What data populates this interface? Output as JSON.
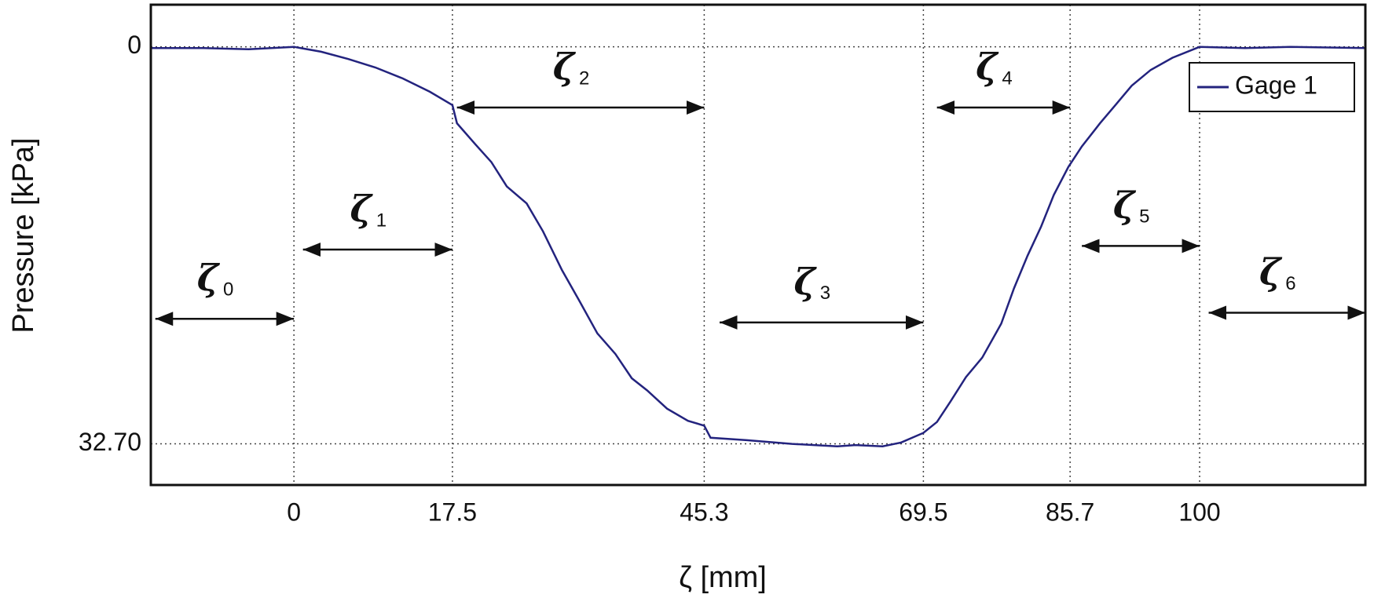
{
  "chart_data": {
    "type": "line",
    "xlabel": "ζ [mm]",
    "ylabel": "Pressure [kPa]",
    "xlim": [
      -15.8,
      118.3
    ],
    "ylim": [
      -3.47,
      36.09
    ],
    "y_inverted": true,
    "xticks": [
      0,
      17.5,
      45.3,
      69.5,
      85.7,
      100
    ],
    "yticks": [
      0,
      {
        "value": 32.7,
        "label": "32.70"
      }
    ],
    "grid": true,
    "legend": "upper right",
    "series": [
      {
        "name": "Gage 1",
        "color": "#23237e",
        "x": [
          -15.8,
          -10,
          -5,
          0,
          3,
          6,
          9,
          12,
          15,
          17.5,
          18,
          20,
          21.8,
          23.5,
          25.7,
          27.5,
          29.6,
          31.5,
          33.5,
          35.5,
          37.3,
          39,
          41.2,
          43.5,
          45.3,
          46,
          50,
          55,
          60,
          62,
          65,
          67,
          69.5,
          71,
          72.5,
          74.2,
          76,
          78.1,
          79.5,
          81,
          82.5,
          83.9,
          85.5,
          87,
          89,
          90.7,
          92.5,
          94.6,
          97,
          100,
          105,
          110,
          118.3
        ],
        "values": [
          0.1,
          0.1,
          0.2,
          0,
          0.4,
          1.0,
          1.7,
          2.6,
          3.7,
          4.8,
          6.3,
          8.0,
          9.5,
          11.5,
          12.9,
          15.2,
          18.4,
          20.9,
          23.6,
          25.3,
          27.3,
          28.3,
          29.8,
          30.8,
          31.2,
          32.2,
          32.4,
          32.7,
          32.9,
          32.8,
          32.9,
          32.6,
          31.8,
          30.9,
          29.2,
          27.2,
          25.6,
          22.8,
          19.9,
          17.2,
          14.8,
          12.2,
          9.9,
          8.2,
          6.3,
          4.8,
          3.2,
          1.9,
          0.9,
          0.0,
          0.1,
          0.0,
          0.1
        ]
      }
    ],
    "annotations": [
      {
        "text": "ζ",
        "subscript": "0",
        "x": [
          -15.3,
          0
        ],
        "y": 22.4
      },
      {
        "text": "ζ",
        "subscript": "1",
        "x": [
          1,
          17.5
        ],
        "y": 16.7
      },
      {
        "text": "ζ",
        "subscript": "2",
        "x": [
          18,
          45.3
        ],
        "y": 5.0
      },
      {
        "text": "ζ",
        "subscript": "3",
        "x": [
          47,
          69.5
        ],
        "y": 22.7
      },
      {
        "text": "ζ",
        "subscript": "4",
        "x": [
          71,
          85.7
        ],
        "y": 5.0
      },
      {
        "text": "ζ",
        "subscript": "5",
        "x": [
          87,
          100
        ],
        "y": 16.4
      },
      {
        "text": "ζ",
        "subscript": "6",
        "x": [
          101,
          118.3
        ],
        "y": 21.9
      }
    ]
  }
}
